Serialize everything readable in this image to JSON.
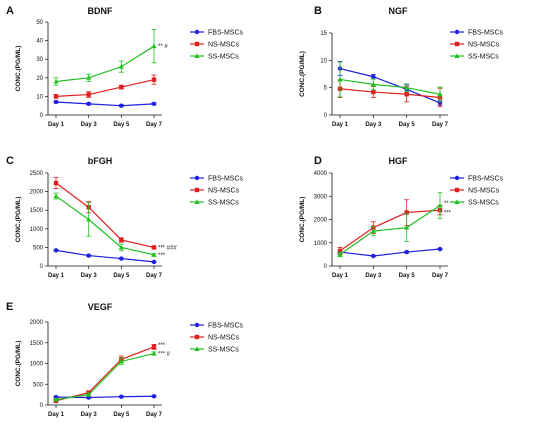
{
  "chart_data": [
    {
      "panel": "A",
      "title": "BDNF",
      "type": "line",
      "ylabel": "CONC.(PG/ML)",
      "ylim": [
        0,
        50
      ],
      "yticks": [
        0,
        10,
        20,
        30,
        40,
        50
      ],
      "categories": [
        "Day 1",
        "Day 3",
        "Day 5",
        "Day 7"
      ],
      "series": [
        {
          "name": "FBS-MSCs",
          "color": "#1f1fe0",
          "values": [
            7,
            6,
            5,
            6
          ],
          "errors": [
            0.5,
            0.5,
            0.5,
            0.5
          ]
        },
        {
          "name": "NS-MSCs",
          "color": "#e02020",
          "values": [
            10,
            11,
            15,
            19
          ],
          "errors": [
            1,
            1.5,
            1,
            2.5
          ]
        },
        {
          "name": "SS-MSCs",
          "color": "#22c022",
          "values": [
            18,
            20,
            26,
            37
          ],
          "errors": [
            2,
            2,
            3,
            9
          ]
        }
      ],
      "annotations": [
        {
          "text": "** #",
          "category": "Day 7",
          "value": 37
        }
      ]
    },
    {
      "panel": "B",
      "title": "NGF",
      "type": "line",
      "ylabel": "CONC.(PG/ML)",
      "ylim": [
        0,
        15
      ],
      "yticks": [
        0,
        5,
        10,
        15
      ],
      "categories": [
        "Day 1",
        "Day 3",
        "Day 5",
        "Day 7"
      ],
      "series": [
        {
          "name": "FBS-MSCs",
          "color": "#1f1fe0",
          "values": [
            8.5,
            7.0,
            4.7,
            2.2
          ],
          "errors": [
            1.3,
            0.4,
            0.8,
            0.4
          ]
        },
        {
          "name": "NS-MSCs",
          "color": "#e02020",
          "values": [
            4.8,
            4.2,
            3.8,
            3.2
          ],
          "errors": [
            1.6,
            1.0,
            1.4,
            1.7
          ]
        },
        {
          "name": "SS-MSCs",
          "color": "#22c022",
          "values": [
            6.5,
            5.6,
            5.0,
            3.8
          ],
          "errors": [
            3.2,
            1.0,
            0.7,
            1.3
          ]
        }
      ],
      "annotations": []
    },
    {
      "panel": "C",
      "title": "bFGH",
      "type": "line",
      "ylabel": "CONC.(PG/ML)",
      "ylim": [
        0,
        2500
      ],
      "yticks": [
        0,
        500,
        1000,
        1500,
        2000,
        2500
      ],
      "categories": [
        "Day 1",
        "Day 3",
        "Day 5",
        "Day 7"
      ],
      "series": [
        {
          "name": "FBS-MSCs",
          "color": "#1f1fe0",
          "values": [
            420,
            280,
            200,
            110
          ],
          "errors": [
            20,
            20,
            20,
            15
          ]
        },
        {
          "name": "NS-MSCs",
          "color": "#e02020",
          "values": [
            2230,
            1580,
            700,
            500
          ],
          "errors": [
            150,
            150,
            60,
            30
          ]
        },
        {
          "name": "SS-MSCs",
          "color": "#22c022",
          "values": [
            1880,
            1250,
            500,
            300
          ],
          "errors": [
            80,
            450,
            90,
            30
          ]
        }
      ],
      "annotations": [
        {
          "text": "*** ###",
          "category": "Day 7",
          "value": 500
        },
        {
          "text": "***",
          "category": "Day 7",
          "value": 300
        }
      ]
    },
    {
      "panel": "D",
      "title": "HGF",
      "type": "line",
      "ylabel": "CONC.(PG/ML)",
      "ylim": [
        0,
        4000
      ],
      "yticks": [
        0,
        1000,
        2000,
        3000,
        4000
      ],
      "categories": [
        "Day 1",
        "Day 3",
        "Day 5",
        "Day 7"
      ],
      "series": [
        {
          "name": "FBS-MSCs",
          "color": "#1f1fe0",
          "values": [
            600,
            430,
            600,
            730
          ],
          "errors": [
            30,
            30,
            40,
            30
          ]
        },
        {
          "name": "NS-MSCs",
          "color": "#e02020",
          "values": [
            650,
            1650,
            2300,
            2400
          ],
          "errors": [
            150,
            250,
            550,
            200
          ]
        },
        {
          "name": "SS-MSCs",
          "color": "#22c022",
          "values": [
            500,
            1500,
            1650,
            2600
          ],
          "errors": [
            100,
            200,
            600,
            550
          ]
        }
      ],
      "annotations": [
        {
          "text": "**",
          "category": "Day 7",
          "value": 2700
        },
        {
          "text": "***",
          "category": "Day 7",
          "value": 2300
        }
      ]
    },
    {
      "panel": "E",
      "title": "VEGF",
      "type": "line",
      "ylabel": "CONC.(PG/ML)",
      "ylim": [
        0,
        2000
      ],
      "yticks": [
        0,
        500,
        1000,
        1500,
        2000
      ],
      "categories": [
        "Day 1",
        "Day 3",
        "Day 5",
        "Day 7"
      ],
      "series": [
        {
          "name": "FBS-MSCs",
          "color": "#1f1fe0",
          "values": [
            190,
            180,
            200,
            210
          ],
          "errors": [
            15,
            15,
            15,
            15
          ]
        },
        {
          "name": "NS-MSCs",
          "color": "#e02020",
          "values": [
            100,
            300,
            1100,
            1400
          ],
          "errors": [
            30,
            30,
            80,
            60
          ]
        },
        {
          "name": "SS-MSCs",
          "color": "#22c022",
          "values": [
            130,
            250,
            1050,
            1240
          ],
          "errors": [
            30,
            40,
            80,
            40
          ]
        }
      ],
      "annotations": [
        {
          "text": "***",
          "category": "Day 7",
          "value": 1440
        },
        {
          "text": "*** #",
          "category": "Day 7",
          "value": 1240
        }
      ]
    }
  ]
}
